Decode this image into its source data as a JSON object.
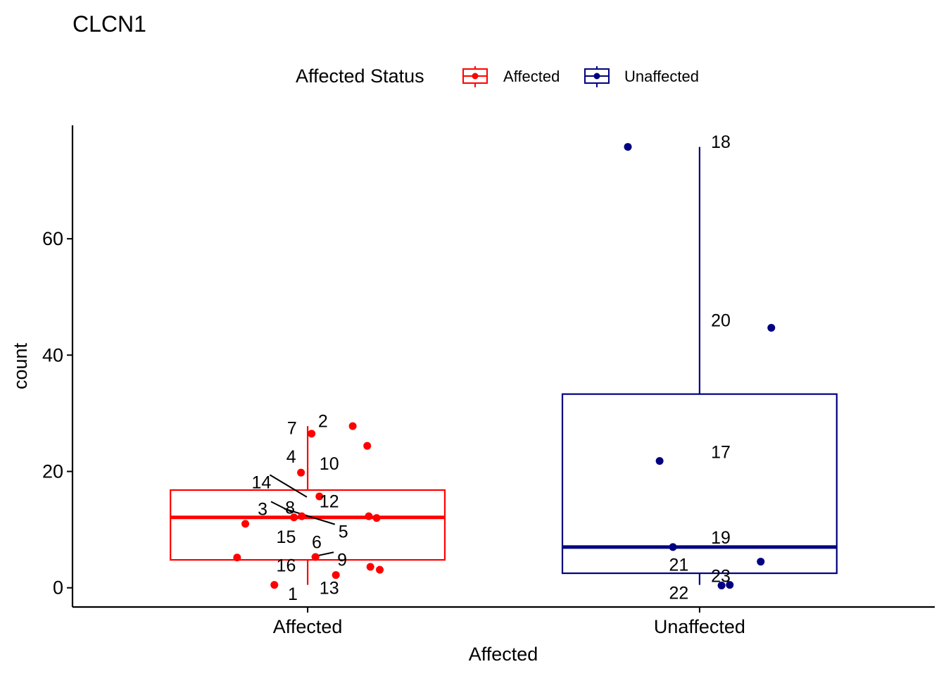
{
  "chart_data": {
    "type": "box",
    "title": "CLCN1",
    "xlabel": "Affected",
    "ylabel": "count",
    "categories": [
      "Affected",
      "Unaffected"
    ],
    "yticks": [
      0,
      20,
      40,
      60
    ],
    "ylim": [
      -3.3,
      79.5
    ],
    "grid": false,
    "legend": {
      "title": "Affected Status",
      "placement": "top-center",
      "entries": [
        {
          "label": "Affected",
          "color": "#FF0000"
        },
        {
          "label": "Unaffected",
          "color": "#000080"
        }
      ]
    },
    "series": [
      {
        "name": "Affected",
        "color": "#FF0000",
        "box": {
          "whisker_low": 0.5,
          "q1": 4.8,
          "median": 12.1,
          "q3": 16.8,
          "whisker_high": 27.8
        },
        "points": [
          {
            "label": "1",
            "y": 0.5,
            "xj": -0.085
          },
          {
            "label": "2",
            "y": 27.8,
            "xj": 0.115
          },
          {
            "label": "3",
            "y": 12.1,
            "xj": -0.035
          },
          {
            "label": "4",
            "y": 19.8,
            "xj": -0.017
          },
          {
            "label": "5",
            "y": 12.3,
            "xj": 0.156
          },
          {
            "label": "6",
            "y": 5.3,
            "xj": 0.02
          },
          {
            "label": "7",
            "y": 26.5,
            "xj": 0.01
          },
          {
            "label": "8",
            "y": 12.3,
            "xj": -0.015
          },
          {
            "label": "9",
            "y": 3.6,
            "xj": 0.16
          },
          {
            "label": "10",
            "y": 24.4,
            "xj": 0.152
          },
          {
            "label": "12",
            "y": 15.7,
            "xj": 0.03
          },
          {
            "label": "13",
            "y": 2.2,
            "xj": 0.072
          },
          {
            "label": "14",
            "y": 12.0,
            "xj": 0.176
          },
          {
            "label": "15",
            "y": 11.0,
            "xj": -0.159
          },
          {
            "label": "16",
            "y": 5.2,
            "xj": -0.18
          },
          {
            "label": "",
            "y": 3.1,
            "xj": 0.184
          }
        ]
      },
      {
        "name": "Unaffected",
        "color": "#000080",
        "box": {
          "whisker_low": 0.5,
          "q1": 2.5,
          "median": 7.0,
          "q3": 33.3,
          "whisker_high": 75.8
        },
        "points": [
          {
            "label": "17",
            "y": 21.8,
            "xj": -0.102
          },
          {
            "label": "18",
            "y": 75.8,
            "xj": -0.183
          },
          {
            "label": "19",
            "y": 7.0,
            "xj": -0.068
          },
          {
            "label": "20",
            "y": 44.7,
            "xj": 0.183
          },
          {
            "label": "21",
            "y": 4.5,
            "xj": 0.156
          },
          {
            "label": "22",
            "y": 0.4,
            "xj": 0.056
          },
          {
            "label": "23",
            "y": 0.5,
            "xj": 0.077
          }
        ]
      }
    ],
    "point_labels": [
      {
        "text": "1",
        "cat": 0,
        "dx": -0.038,
        "y": -1.0
      },
      {
        "text": "2",
        "cat": 0,
        "dx": 0.039,
        "y": 28.7
      },
      {
        "text": "7",
        "cat": 0,
        "dx": -0.04,
        "y": 27.5
      },
      {
        "text": "4",
        "cat": 0,
        "dx": -0.042,
        "y": 22.6
      },
      {
        "text": "10",
        "cat": 0,
        "dx": 0.055,
        "y": 21.4
      },
      {
        "text": "14",
        "cat": 0,
        "dx": -0.118,
        "y": 18.2,
        "line_to": {
          "dx": -0.002,
          "y": 15.6
        }
      },
      {
        "text": "12",
        "cat": 0,
        "dx": 0.055,
        "y": 14.9
      },
      {
        "text": "3",
        "cat": 0,
        "dx": -0.115,
        "y": 13.6,
        "line_to": {
          "dx": -0.04,
          "y": 13.0
        }
      },
      {
        "text": "8",
        "cat": 0,
        "dx": -0.045,
        "y": 13.8
      },
      {
        "text": "5",
        "cat": 0,
        "dx": 0.091,
        "y": 9.7,
        "line_to": {
          "dx": -0.06,
          "y": 13.6
        }
      },
      {
        "text": "15",
        "cat": 0,
        "dx": -0.055,
        "y": 8.8
      },
      {
        "text": "6",
        "cat": 0,
        "dx": 0.023,
        "y": 7.9
      },
      {
        "text": "9",
        "cat": 0,
        "dx": 0.088,
        "y": 4.9,
        "line_to": {
          "dx": 0.01,
          "y": 5.3
        }
      },
      {
        "text": "16",
        "cat": 0,
        "dx": -0.055,
        "y": 3.9
      },
      {
        "text": "13",
        "cat": 0,
        "dx": 0.055,
        "y": 0.0
      },
      {
        "text": "18",
        "cat": 1,
        "dx": 0.054,
        "y": 76.7
      },
      {
        "text": "20",
        "cat": 1,
        "dx": 0.054,
        "y": 46.0
      },
      {
        "text": "17",
        "cat": 1,
        "dx": 0.054,
        "y": 23.4
      },
      {
        "text": "19",
        "cat": 1,
        "dx": 0.054,
        "y": 8.7
      },
      {
        "text": "21",
        "cat": 1,
        "dx": -0.053,
        "y": 4.0
      },
      {
        "text": "23",
        "cat": 1,
        "dx": 0.054,
        "y": 2.1
      },
      {
        "text": "22",
        "cat": 1,
        "dx": -0.053,
        "y": -0.8
      }
    ]
  }
}
